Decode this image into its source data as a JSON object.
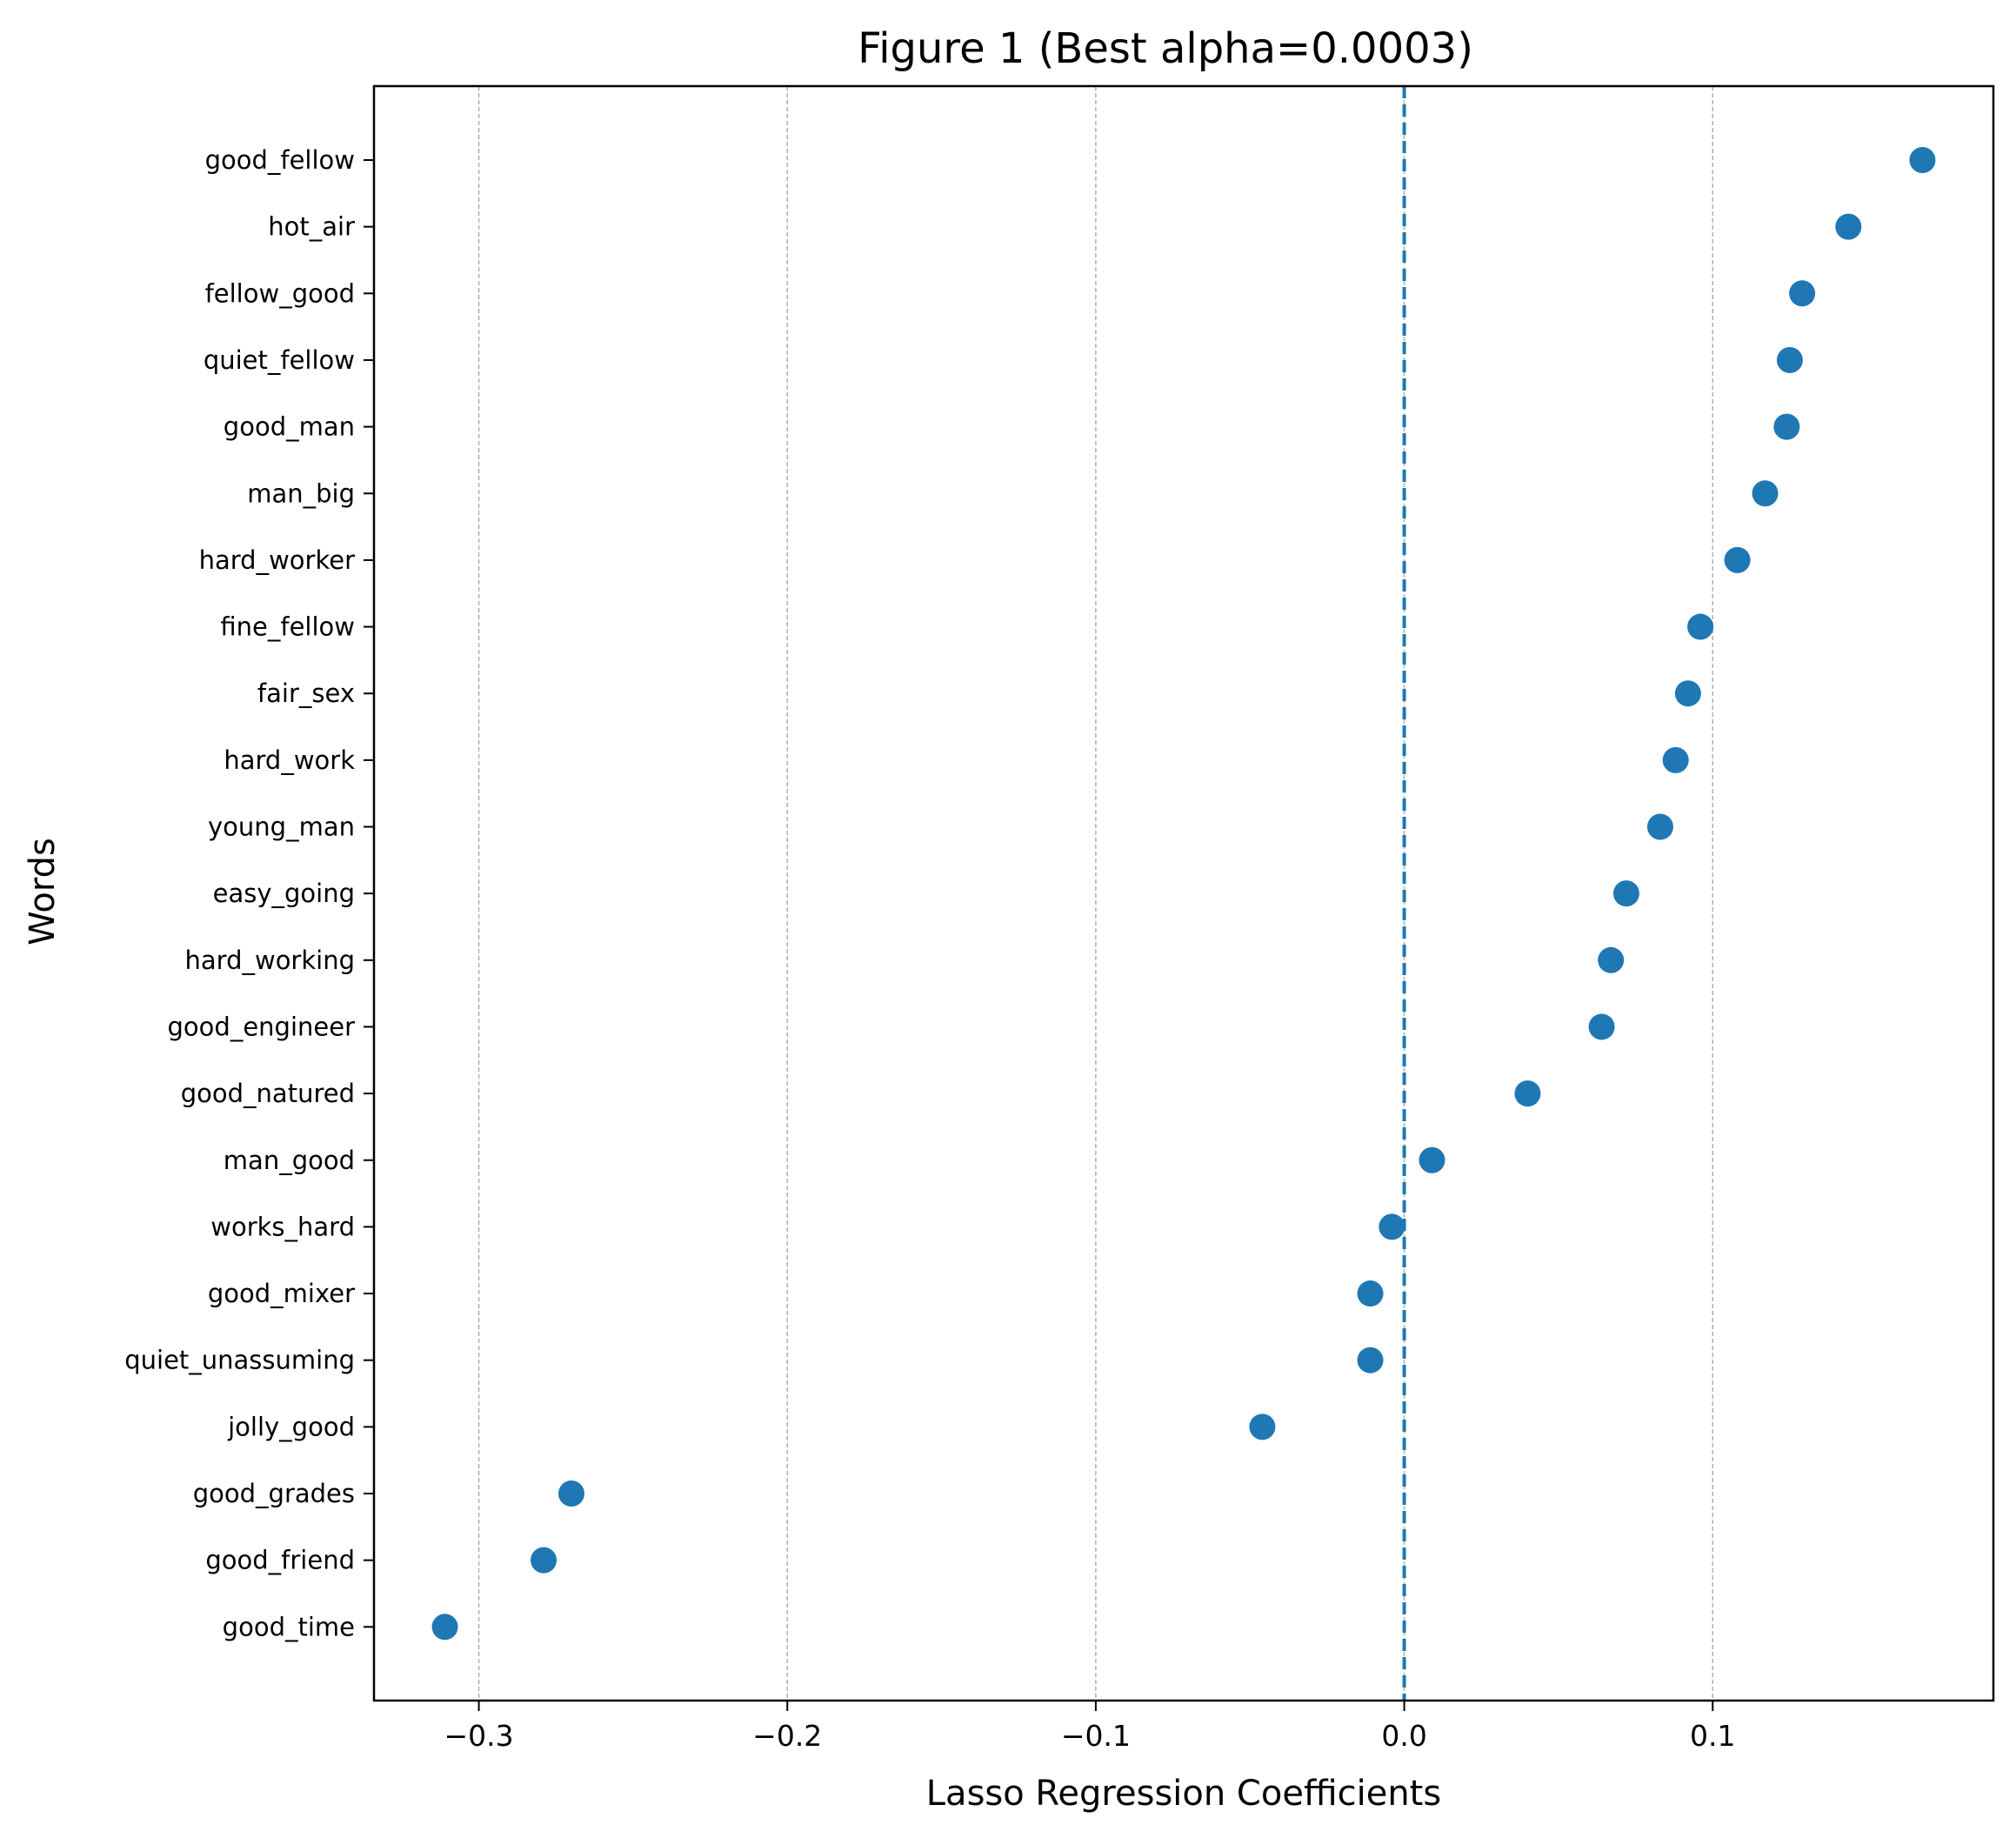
{
  "chart_data": {
    "type": "scatter",
    "title": "Figure 1 (Best alpha=0.0003)",
    "xlabel": "Lasso Regression Coefficients",
    "ylabel": "Words",
    "xlim": [
      -0.334,
      0.191
    ],
    "x_ticks": [
      -0.3,
      -0.2,
      -0.1,
      0.0,
      0.1
    ],
    "x_tick_labels": [
      "−0.3",
      "−0.2",
      "−0.1",
      "0.0",
      "0.1"
    ],
    "grid": "x-axis dashed",
    "reference_line": {
      "x": 0.0,
      "style": "dashed"
    },
    "marker_color": "#1f77b4",
    "categories": [
      "good_fellow",
      "hot_air",
      "fellow_good",
      "quiet_fellow",
      "good_man",
      "man_big",
      "hard_worker",
      "fine_fellow",
      "fair_sex",
      "hard_work",
      "young_man",
      "easy_going",
      "hard_working",
      "good_engineer",
      "good_natured",
      "man_good",
      "works_hard",
      "good_mixer",
      "quiet_unassuming",
      "jolly_good",
      "good_grades",
      "good_friend",
      "good_time"
    ],
    "values": [
      0.168,
      0.144,
      0.129,
      0.125,
      0.124,
      0.117,
      0.108,
      0.096,
      0.092,
      0.088,
      0.083,
      0.072,
      0.067,
      0.064,
      0.04,
      0.009,
      -0.004,
      -0.011,
      -0.011,
      -0.046,
      -0.27,
      -0.279,
      -0.311
    ]
  }
}
